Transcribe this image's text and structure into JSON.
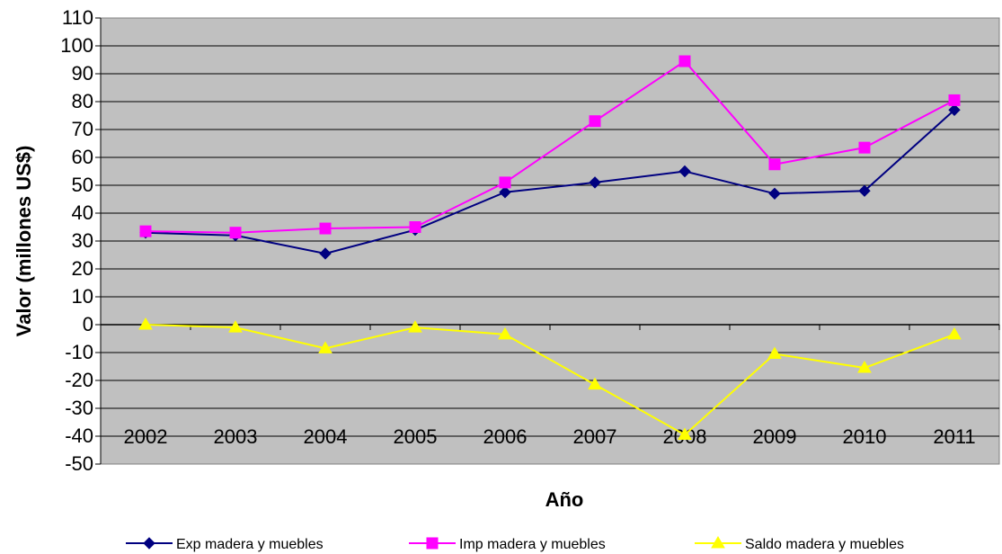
{
  "chart_data": {
    "type": "line",
    "title": "",
    "xlabel": "Año",
    "ylabel": "Valor (millones US$)",
    "categories": [
      "2002",
      "2003",
      "2004",
      "2005",
      "2006",
      "2007",
      "2008",
      "2009",
      "2010",
      "2011"
    ],
    "ylim": [
      -50,
      110
    ],
    "yticks": [
      110,
      100,
      90,
      80,
      70,
      60,
      50,
      40,
      30,
      20,
      10,
      0,
      -10,
      -20,
      -30,
      -40,
      -50
    ],
    "ytick_labels": [
      "110",
      "100",
      "90",
      "80",
      "70",
      "60",
      "50",
      "40",
      "30",
      "20",
      "10",
      "0",
      "-10",
      "-20",
      "-30",
      "-40",
      "-50"
    ],
    "grid": true,
    "plot_background": "#c0c0c0",
    "legend_position": "bottom",
    "series": [
      {
        "name": "Exp madera y muebles",
        "color": "#000080",
        "marker": "diamond",
        "values": [
          33,
          32,
          25.5,
          34,
          47.5,
          51,
          55,
          47,
          48,
          77
        ]
      },
      {
        "name": "Imp madera y muebles",
        "color": "#ff00ff",
        "marker": "square",
        "values": [
          33.5,
          33,
          34.5,
          35,
          51,
          73,
          94.5,
          57.5,
          63.5,
          80.5
        ]
      },
      {
        "name": "Saldo madera y muebles",
        "color": "#ffff00",
        "marker": "triangle",
        "values": [
          0,
          -1,
          -8.5,
          -1,
          -3.5,
          -21.5,
          -39.5,
          -10.5,
          -15.5,
          -3.5
        ]
      }
    ]
  }
}
